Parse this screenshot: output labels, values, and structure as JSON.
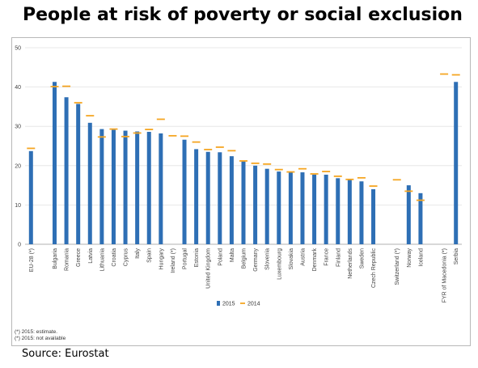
{
  "title": "People at risk of poverty or social exclusion",
  "source": "Source: Eurostat",
  "notes": [
    "(*) 2015: estimate.",
    "(*) 2015: not available"
  ],
  "colors": {
    "bar": "#2e6fb5",
    "marker": "#f5a623",
    "grid": "#e2e2e2",
    "axis": "#999999"
  },
  "chart_data": {
    "type": "bar",
    "ylim": [
      0,
      50
    ],
    "yticks": [
      0,
      10,
      20,
      30,
      40,
      50
    ],
    "grid": true,
    "legend_position": "bottom",
    "categories": [
      "EU-28 (*)",
      "",
      "Bulgaria",
      "Romania",
      "Greece",
      "Latvia",
      "Lithuania",
      "Croatia",
      "Cyprus",
      "Italy",
      "Spain",
      "Hungary",
      "Ireland (*)",
      "Portugal",
      "Estonia",
      "United Kingdom",
      "Poland",
      "Malta",
      "Belgium",
      "Germany",
      "Slovenia",
      "Luxembourg",
      "Slovakia",
      "Austria",
      "Denmark",
      "France",
      "Finland",
      "Netherlands",
      "Sweden",
      "Czech Republic",
      "",
      "Switzerland (*)",
      "Norway",
      "Iceland",
      "",
      "FYR of Macedonia (*)",
      "Serbia"
    ],
    "series": [
      {
        "name": "2015",
        "type": "bar",
        "values": [
          23.7,
          null,
          41.3,
          37.4,
          35.7,
          30.9,
          29.3,
          29.1,
          28.9,
          28.7,
          28.6,
          28.2,
          null,
          26.6,
          24.2,
          23.5,
          23.4,
          22.4,
          21.1,
          20.0,
          19.2,
          18.5,
          18.4,
          18.3,
          17.7,
          17.7,
          16.8,
          16.4,
          16.0,
          14.0,
          null,
          null,
          15.0,
          13.0,
          null,
          null,
          41.3
        ]
      },
      {
        "name": "2014",
        "type": "marker",
        "values": [
          24.4,
          null,
          40.1,
          40.2,
          36.0,
          32.7,
          27.3,
          29.3,
          27.4,
          28.3,
          29.2,
          31.8,
          27.6,
          27.5,
          26.0,
          24.1,
          24.7,
          23.8,
          21.2,
          20.6,
          20.4,
          19.0,
          18.4,
          19.2,
          17.9,
          18.5,
          17.3,
          16.5,
          16.9,
          14.8,
          null,
          16.4,
          13.5,
          11.2,
          null,
          43.3,
          43.1
        ]
      }
    ]
  }
}
